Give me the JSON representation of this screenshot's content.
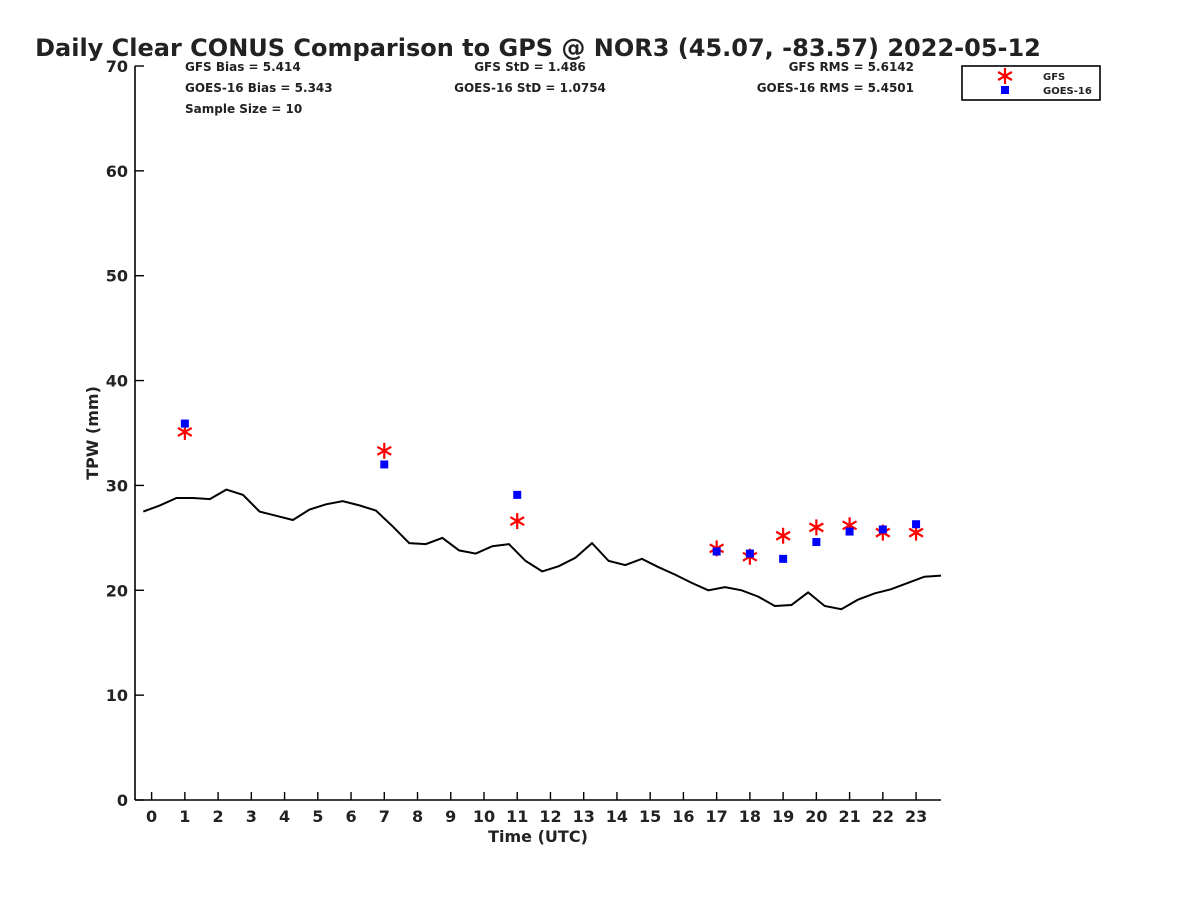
{
  "chart_data": {
    "type": "line",
    "title": "Daily Clear CONUS Comparison to GPS @ NOR3 (45.07, -83.57) 2022-05-12",
    "xlabel": "Time (UTC)",
    "ylabel": "TPW (mm)",
    "xlim": [
      -0.5,
      23.75
    ],
    "ylim": [
      0,
      70
    ],
    "xticks": [
      "0",
      "1",
      "2",
      "3",
      "4",
      "5",
      "6",
      "7",
      "8",
      "9",
      "10",
      "11",
      "12",
      "13",
      "14",
      "15",
      "16",
      "17",
      "18",
      "19",
      "20",
      "21",
      "22",
      "23"
    ],
    "yticks": [
      "0",
      "10",
      "20",
      "30",
      "40",
      "50",
      "60",
      "70"
    ],
    "grid": false,
    "legend_position": "top-right",
    "stats": {
      "gfs_bias": "GFS Bias = 5.414",
      "goes_bias": "GOES-16 Bias = 5.343",
      "sample_size": "Sample Size = 10",
      "gfs_std": "GFS StD = 1.486",
      "goes_std": "GOES-16 StD = 1.0754",
      "gfs_rms": "GFS RMS = 5.6142",
      "goes_rms": "GOES-16 RMS = 5.4501"
    },
    "series": [
      {
        "name": "",
        "kind": "line",
        "color": "#000000",
        "x": [
          -0.25,
          0.25,
          0.75,
          1.25,
          1.75,
          2.25,
          2.75,
          3.25,
          3.75,
          4.25,
          4.75,
          5.25,
          5.75,
          6.25,
          6.75,
          7.25,
          7.75,
          8.25,
          8.75,
          9.25,
          9.75,
          10.25,
          10.75,
          11.25,
          11.75,
          12.25,
          12.75,
          13.25,
          13.75,
          14.25,
          14.75,
          15.25,
          15.75,
          16.25,
          16.75,
          17.25,
          17.75,
          18.25,
          18.75,
          19.25,
          19.75,
          20.25,
          20.75,
          21.25,
          21.75,
          22.25,
          22.75,
          23.25,
          23.75
        ],
        "y": [
          27.5,
          28.1,
          28.8,
          28.8,
          28.7,
          29.6,
          29.1,
          27.5,
          27.1,
          26.7,
          27.7,
          28.2,
          28.5,
          28.1,
          27.6,
          26.1,
          24.5,
          24.4,
          25.0,
          23.8,
          23.5,
          24.2,
          24.4,
          22.8,
          21.8,
          22.3,
          23.1,
          24.5,
          22.8,
          22.4,
          23.0,
          22.2,
          21.5,
          20.7,
          20.0,
          20.3,
          20.0,
          19.4,
          18.5,
          18.6,
          19.8,
          18.5,
          18.2,
          19.1,
          19.7,
          20.1,
          20.7,
          21.3,
          21.4
        ]
      },
      {
        "name": "GFS",
        "kind": "scatter",
        "marker": "asterisk",
        "color": "#ff0000",
        "x": [
          1,
          7,
          11,
          17,
          18,
          19,
          20,
          21,
          22,
          23
        ],
        "y": [
          35.1,
          33.3,
          26.6,
          24.0,
          23.2,
          25.2,
          26.0,
          26.2,
          25.5,
          25.5
        ]
      },
      {
        "name": "GOES-16",
        "kind": "scatter",
        "marker": "square",
        "color": "#0000ff",
        "x": [
          1,
          7,
          11,
          17,
          18,
          19,
          20,
          21,
          22,
          23
        ],
        "y": [
          35.9,
          32.0,
          29.1,
          23.7,
          23.5,
          23.0,
          24.6,
          25.6,
          25.8,
          26.3
        ]
      }
    ]
  }
}
